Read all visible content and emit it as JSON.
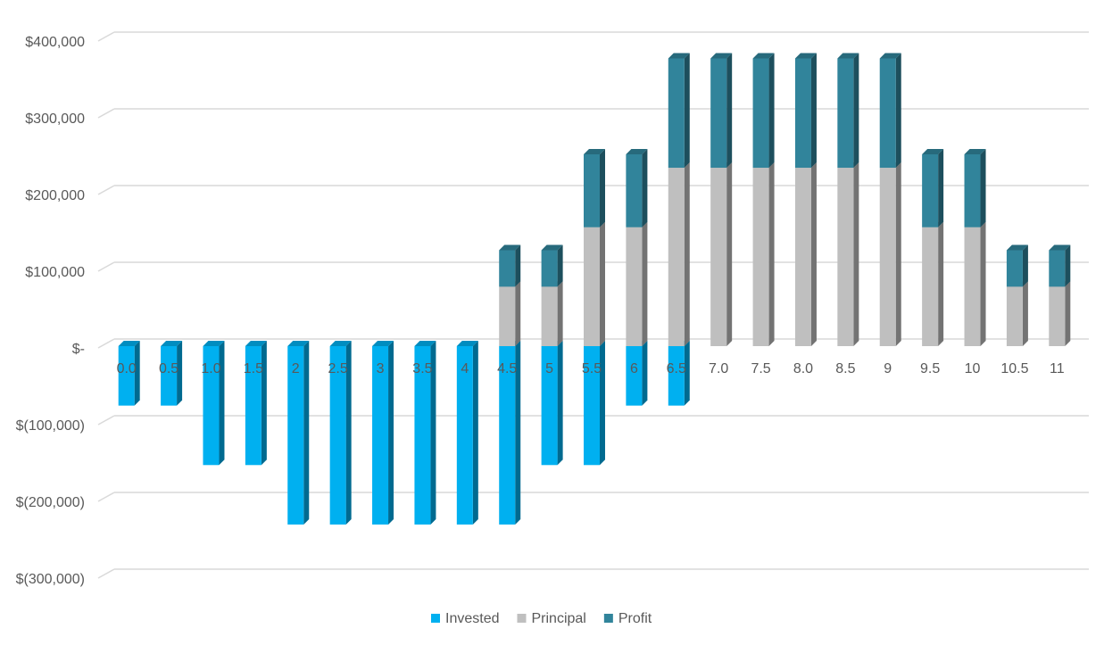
{
  "chart_data": {
    "type": "bar",
    "stacked": true,
    "categories": [
      "0.0",
      "0.5",
      "1.0",
      "1.5",
      "2",
      "2.5",
      "3",
      "3.5",
      "4",
      "4.5",
      "5",
      "5.5",
      "6",
      "6.5",
      "7.0",
      "7.5",
      "8.0",
      "8.5",
      "9",
      "9.5",
      "10",
      "10.5",
      "11"
    ],
    "series": [
      {
        "name": "Invested",
        "color": "#00b0f0",
        "values": [
          -77500,
          -77500,
          -155000,
          -155000,
          -232500,
          -232500,
          -232500,
          -232500,
          -232500,
          -232500,
          -155000,
          -155000,
          -77500,
          -77500,
          0,
          0,
          0,
          0,
          0,
          0,
          0,
          0,
          0
        ]
      },
      {
        "name": "Principal",
        "color": "#bfbfbf",
        "values": [
          0,
          0,
          0,
          0,
          0,
          0,
          0,
          0,
          0,
          77500,
          77500,
          155000,
          155000,
          232500,
          232500,
          232500,
          232500,
          232500,
          232500,
          155000,
          155000,
          77500,
          77500
        ]
      },
      {
        "name": "Profit",
        "color": "#31849b",
        "values": [
          0,
          0,
          0,
          0,
          0,
          0,
          0,
          0,
          0,
          47500,
          47500,
          95000,
          95000,
          142500,
          142500,
          142500,
          142500,
          142500,
          142500,
          95000,
          95000,
          47500,
          47500
        ]
      }
    ],
    "ylim": [
      -300000,
      400000
    ],
    "yticks": [
      {
        "value": 400000,
        "label": "$400,000"
      },
      {
        "value": 300000,
        "label": "$300,000"
      },
      {
        "value": 200000,
        "label": "$200,000"
      },
      {
        "value": 100000,
        "label": "$100,000"
      },
      {
        "value": 0,
        "label": "$-"
      },
      {
        "value": -100000,
        "label": "$(100,000)"
      },
      {
        "value": -200000,
        "label": "$(200,000)"
      },
      {
        "value": -300000,
        "label": "$(300,000)"
      }
    ],
    "grid": true,
    "legend": "bottom"
  }
}
